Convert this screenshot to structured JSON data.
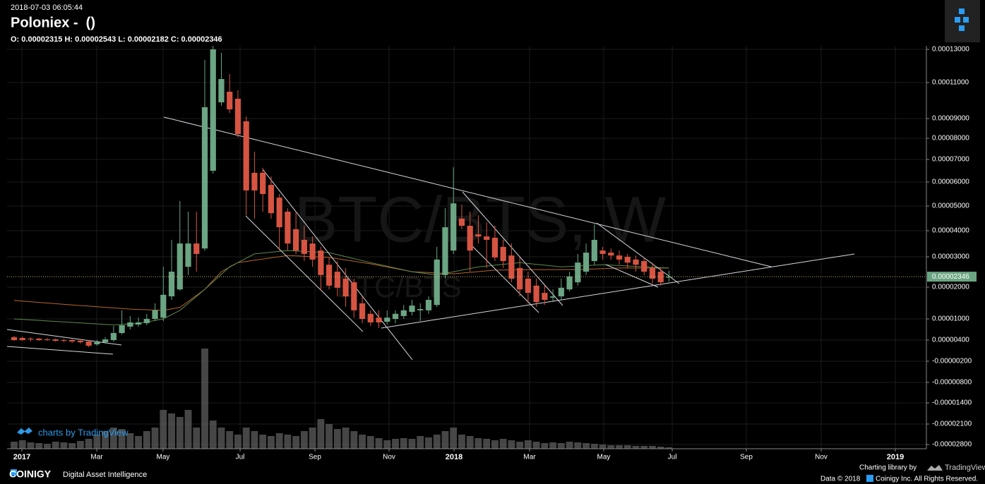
{
  "chart_data": {
    "type": "candlestick",
    "timestamp": "2018-07-03 06:05:44",
    "title": "Poloniex -  ()",
    "ohlc_label": "O: 0.00002315 H: 0.00002543 L: 0.00002182 C: 0.00002346",
    "watermark": "BTC/BTS, W",
    "watermark_sub": "BTC/BTS",
    "attribution": "charts by TradingView",
    "brand": "COINIGY",
    "tagline": "Digital Asset Intelligence",
    "library_label": "Charting library by",
    "library_name": "TradingView",
    "copyright_year": "Data © 2018",
    "copyright_owner": "Coinigy Inc. All Rights Reserved.",
    "up_color": "#6ba583",
    "down_color": "#d75442",
    "volume_color": "#5e5e5e",
    "grid": true,
    "categories": [
      null,
      null,
      null,
      null,
      null,
      null,
      null,
      null,
      null,
      null,
      null,
      null,
      null,
      null,
      null,
      null,
      null,
      null,
      null,
      null,
      null,
      null,
      null,
      null,
      null,
      null,
      null,
      null,
      null,
      null,
      null,
      null,
      null,
      null,
      null,
      null,
      null,
      null,
      null,
      null,
      null,
      null,
      null,
      null,
      null,
      null,
      null,
      null,
      null,
      null,
      null,
      null,
      null,
      null,
      null,
      null,
      null,
      null,
      null,
      null,
      null,
      null,
      null,
      null,
      null,
      null,
      null,
      null,
      null,
      null,
      null,
      null,
      null,
      null,
      null,
      null,
      null,
      null,
      null,
      null
    ],
    "open": [
      4.8e-06,
      4.6e-06,
      4.4e-06,
      4.4e-06,
      4.2e-06,
      4.2e-06,
      4e-06,
      4e-06,
      3.8e-06,
      3.6e-06,
      2.8e-06,
      3.4e-06,
      4e-06,
      6e-06,
      7.8e-06,
      8.4e-06,
      8.8e-06,
      1e-05,
      1.04e-05,
      1.71e-05,
      1.93e-05,
      2.67e-05,
      3.51e-05,
      3.32e-05,
      6.5e-05,
      9.9e-05,
      0.0001049,
      0.000101,
      8.86e-05,
      6.41e-05,
      6.41e-05,
      5.88e-05,
      5.35e-05,
      4.77e-05,
      4.06e-05,
      3.65e-05,
      3.51e-05,
      3.24e-05,
      2.74e-05,
      2.51e-05,
      2.28e-05,
      2.16e-05,
      1.49e-05,
      1.16e-05,
      1.04e-05,
      9.2e-06,
      1e-05,
      1.09e-05,
      1.22e-05,
      1.27e-05,
      1.27e-05,
      1.44e-05,
      2.4e-05,
      3.24e-05,
      4.49e-05,
      4.2e-05,
      3.86e-05,
      3.78e-05,
      3.73e-05,
      3.38e-05,
      3.05e-05,
      2.63e-05,
      2.28e-05,
      2.05e-05,
      1.82e-05,
      1.67e-05,
      1.71e-05,
      1.93e-05,
      2.16e-05,
      2.51e-05,
      2.86e-05,
      3.24e-05,
      3.16e-05,
      3.05e-05,
      3e-05,
      2.91e-05,
      2.86e-05,
      2.63e-05,
      2.51e-05,
      2.315e-05
    ],
    "high": [
      5.2e-06,
      5e-06,
      4.8e-06,
      4.6e-06,
      4.6e-06,
      4.4e-06,
      4.4e-06,
      4.2e-06,
      4.2e-06,
      4e-06,
      4e-06,
      4.8e-06,
      8e-06,
      1.27e-05,
      1.09e-05,
      1.04e-05,
      1.16e-05,
      1.49e-05,
      2.67e-05,
      3.65e-05,
      5.21e-05,
      4.77e-05,
      4.77e-05,
      0.0001236,
      0.000132,
      0.0001279,
      0.0001151,
      0.0001057,
      9.12e-05,
      7.37e-05,
      6.63e-05,
      6.25e-05,
      5.5e-05,
      4.91e-05,
      4.77e-05,
      4.2e-05,
      3.78e-05,
      3.38e-05,
      2.98e-05,
      2.86e-05,
      2.63e-05,
      2.28e-05,
      1.71e-05,
      1.27e-05,
      1.27e-05,
      1.27e-05,
      1.27e-05,
      1.44e-05,
      1.6e-05,
      1.49e-05,
      1.71e-05,
      3.38e-05,
      4.91e-05,
      6.66e-05,
      5.06e-05,
      4.77e-05,
      4.63e-05,
      4.34e-05,
      4.2e-05,
      3.65e-05,
      3.51e-05,
      2.98e-05,
      2.51e-05,
      2.28e-05,
      2.05e-05,
      1.93e-05,
      2.28e-05,
      2.51e-05,
      3.11e-05,
      3.51e-05,
      4.26e-05,
      3.38e-05,
      3.32e-05,
      3.24e-05,
      3.11e-05,
      3.05e-05,
      2.98e-05,
      2.81e-05,
      2.63e-05,
      2.543e-05
    ],
    "low": [
      3.8e-06,
      3.8e-06,
      3.6e-06,
      3.8e-06,
      3.8e-06,
      3.6e-06,
      3.4e-06,
      3.2e-06,
      3e-06,
      2e-06,
      2.4e-06,
      3e-06,
      3.6e-06,
      5.6e-06,
      7e-06,
      7.8e-06,
      8.2e-06,
      9.4e-06,
      9.4e-06,
      1.6e-05,
      1.89e-05,
      2.4e-05,
      2.51e-05,
      3.24e-05,
      6.38e-05,
      9.71e-05,
      9.31e-05,
      8.04e-05,
      4.63e-05,
      4.49e-05,
      4.77e-05,
      4.49e-05,
      3.24e-05,
      3.24e-05,
      3.11e-05,
      2.86e-05,
      2.67e-05,
      1.89e-05,
      1.93e-05,
      1.71e-05,
      1.38e-05,
      1.04e-05,
      8.8e-06,
      8e-06,
      7.4e-06,
      8.4e-06,
      8.8e-06,
      1e-05,
      1.11e-05,
      9.4e-06,
      1.16e-05,
      1.38e-05,
      2.28e-05,
      3.11e-05,
      4.06e-05,
      2.51e-05,
      3.51e-05,
      2.63e-05,
      2.86e-05,
      2.63e-05,
      2.16e-05,
      1.71e-05,
      1.49e-05,
      1.38e-05,
      1.44e-05,
      1.53e-05,
      1.6e-05,
      1.87e-05,
      2.05e-05,
      2.4e-05,
      2.74e-05,
      2.91e-05,
      2.91e-05,
      2.74e-05,
      2.63e-05,
      2.51e-05,
      2.4e-05,
      2.12e-05,
      2.05e-05,
      2.182e-05
    ],
    "close": [
      4e-06,
      4e-06,
      4.2e-06,
      4e-06,
      4e-06,
      3.8e-06,
      3.8e-06,
      3.6e-06,
      3.4e-06,
      2.4e-06,
      3.4e-06,
      4.2e-06,
      6e-06,
      8.2e-06,
      9e-06,
      9e-06,
      1e-05,
      1.27e-05,
      1.76e-05,
      2.51e-05,
      3.51e-05,
      3.51e-05,
      3.11e-05,
      9.63e-05,
      0.00013,
      0.0001121,
      9.51e-05,
      8.21e-05,
      5.65e-05,
      5.65e-05,
      5.5e-05,
      4.71e-05,
      4.14e-05,
      3.51e-05,
      3.24e-05,
      3.11e-05,
      2.91e-05,
      2.4e-05,
      2.05e-05,
      1.98e-05,
      1.71e-05,
      1.27e-05,
      1e-05,
      9e-06,
      9e-06,
      1.04e-05,
      1.16e-05,
      1.27e-05,
      1.42e-05,
      1.31e-05,
      1.6e-05,
      2.91e-05,
      4.14e-05,
      5.11e-05,
      4.2e-05,
      3.24e-05,
      3.78e-05,
      3.65e-05,
      2.98e-05,
      2.86e-05,
      2.28e-05,
      1.93e-05,
      1.82e-05,
      1.53e-05,
      1.6e-05,
      1.71e-05,
      1.98e-05,
      2.35e-05,
      2.81e-05,
      3.16e-05,
      3.65e-05,
      3.11e-05,
      3.05e-05,
      2.91e-05,
      2.81e-05,
      2.74e-05,
      2.51e-05,
      2.28e-05,
      2.16e-05,
      2.346e-05
    ],
    "volume": [
      10,
      12,
      9,
      8,
      7,
      10,
      9,
      8,
      11,
      14,
      20,
      25,
      30,
      28,
      22,
      18,
      25,
      30,
      55,
      50,
      45,
      55,
      30,
      142,
      40,
      30,
      25,
      20,
      30,
      25,
      20,
      18,
      22,
      20,
      18,
      25,
      30,
      42,
      35,
      28,
      30,
      25,
      20,
      18,
      15,
      12,
      14,
      15,
      14,
      18,
      16,
      20,
      25,
      30,
      20,
      18,
      15,
      14,
      12,
      14,
      12,
      10,
      12,
      10,
      8,
      9,
      8,
      10,
      9,
      8,
      7,
      6,
      5,
      5,
      5,
      4,
      4,
      4,
      3,
      2
    ],
    "moving_averages": [
      {
        "color": "#b5652b",
        "x": [
          0,
          7,
          14,
          18,
          20,
          23,
          25,
          27,
          33,
          38,
          43,
          48,
          53,
          58,
          63,
          68,
          73,
          79
        ],
        "values": [
          1.58e-05,
          1.44e-05,
          1.31e-05,
          1.27e-05,
          1.36e-05,
          1.93e-05,
          2.51e-05,
          2.81e-05,
          3.05e-05,
          2.98e-05,
          2.77e-05,
          2.51e-05,
          2.44e-05,
          2.56e-05,
          2.58e-05,
          2.58e-05,
          2.63e-05,
          2.63e-05
        ]
      },
      {
        "color": "#5c8a4e",
        "x": [
          0,
          7,
          12,
          15,
          18,
          20,
          23,
          26,
          29,
          33,
          38,
          43,
          48,
          51,
          56,
          61,
          66,
          71,
          79
        ],
        "values": [
          1e-05,
          9e-06,
          8.3e-06,
          8.7e-06,
          1e-05,
          1.27e-05,
          1.93e-05,
          2.67e-05,
          3.11e-05,
          3.24e-05,
          3.16e-05,
          2.81e-05,
          2.51e-05,
          2.4e-05,
          2.67e-05,
          2.81e-05,
          2.67e-05,
          2.74e-05,
          2.63e-05
        ]
      }
    ],
    "last_price": {
      "value": 2.346e-05,
      "label": "0.00002346"
    },
    "xlim": [
      -0.85,
      110.05
    ],
    "xticks": [
      {
        "value": 0.94,
        "label": "2017"
      },
      {
        "value": 9.97,
        "label": "Mar"
      },
      {
        "value": 17.97,
        "label": "May"
      },
      {
        "value": 27.26,
        "label": "Jul"
      },
      {
        "value": 36.29,
        "label": "Sep"
      },
      {
        "value": 45.23,
        "label": "Nov"
      },
      {
        "value": 53.07,
        "label": "2018"
      },
      {
        "value": 62.18,
        "label": "Mar"
      },
      {
        "value": 71.12,
        "label": "May"
      },
      {
        "value": 79.39,
        "label": "Jul"
      },
      {
        "value": 88.33,
        "label": "Sep"
      },
      {
        "value": 97.36,
        "label": "Nov"
      },
      {
        "value": 106.3,
        "label": "2019"
      }
    ],
    "ylim": [
      -2.94e-05,
      0.0001321
    ],
    "yticks": [
      {
        "value": 0.00013,
        "label": "0.00013000"
      },
      {
        "value": 0.00011,
        "label": "0.00011000"
      },
      {
        "value": 9e-05,
        "label": "0.00009000"
      },
      {
        "value": 8e-05,
        "label": "0.00008000"
      },
      {
        "value": 7e-05,
        "label": "0.00007000"
      },
      {
        "value": 6e-05,
        "label": "0.00006000"
      },
      {
        "value": 5e-05,
        "label": "0.00005000"
      },
      {
        "value": 4e-05,
        "label": "0.00004000"
      },
      {
        "value": 3e-05,
        "label": "0.00003000"
      },
      {
        "value": 2e-05,
        "label": "0.00002000"
      },
      {
        "value": 1e-05,
        "label": "0.00001000"
      },
      {
        "value": 4e-06,
        "label": "0.00000400"
      },
      {
        "value": -2e-06,
        "label": "-0.00000200"
      },
      {
        "value": -8e-06,
        "label": "-0.00000800"
      },
      {
        "value": -1.4e-05,
        "label": "-0.00001400"
      },
      {
        "value": -2.1e-05,
        "label": "-0.00002100"
      },
      {
        "value": -2.8e-05,
        "label": "-0.00002800"
      }
    ]
  }
}
